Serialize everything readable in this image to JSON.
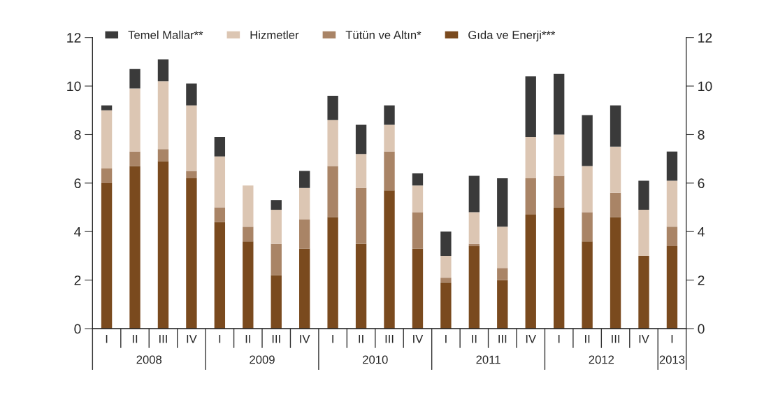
{
  "chart_data": {
    "type": "bar",
    "stacked": true,
    "categories": [
      "I",
      "II",
      "III",
      "IV",
      "I",
      "II",
      "III",
      "IV",
      "I",
      "II",
      "III",
      "IV",
      "I",
      "II",
      "III",
      "IV",
      "I",
      "II",
      "III",
      "IV",
      "I"
    ],
    "series": [
      {
        "name": "Gıda ve Enerji***",
        "color": "#7a4a1e",
        "values": [
          6.0,
          6.7,
          6.9,
          6.2,
          4.4,
          3.6,
          2.2,
          3.3,
          4.6,
          3.5,
          5.7,
          3.3,
          1.9,
          3.4,
          2.0,
          4.7,
          5.0,
          3.6,
          4.6,
          3.0,
          3.4
        ]
      },
      {
        "name": "Tütün ve Altın*",
        "color": "#a98466",
        "values": [
          0.6,
          0.6,
          0.5,
          0.3,
          0.6,
          0.6,
          1.3,
          1.2,
          2.1,
          2.3,
          1.6,
          1.5,
          0.2,
          0.1,
          0.5,
          1.5,
          1.3,
          1.2,
          1.0,
          0.0,
          0.8
        ]
      },
      {
        "name": "Hizmetler",
        "color": "#dcc6b3",
        "values": [
          2.4,
          2.6,
          2.8,
          2.7,
          2.1,
          1.7,
          1.4,
          1.3,
          1.9,
          1.4,
          1.1,
          1.1,
          0.9,
          1.3,
          1.7,
          1.7,
          1.7,
          1.9,
          1.9,
          1.9,
          1.9
        ]
      },
      {
        "name": "Temel Mallar**",
        "color": "#3a3a3a",
        "values": [
          0.2,
          0.8,
          0.9,
          0.9,
          0.8,
          0.0,
          0.4,
          0.7,
          1.0,
          1.2,
          0.8,
          0.5,
          1.0,
          1.5,
          2.0,
          2.5,
          2.5,
          2.1,
          1.7,
          1.2,
          1.2
        ]
      }
    ],
    "ylim": [
      0,
      12
    ],
    "yticks": [
      0,
      2,
      4,
      6,
      8,
      10,
      12
    ],
    "y2lim": [
      0,
      12
    ],
    "y2ticks": [
      0,
      2,
      4,
      6,
      8,
      10,
      12
    ],
    "annotations": [
      "2008",
      "2009",
      "2010",
      "2011",
      "2012",
      "2013"
    ],
    "legend": "top",
    "grid": false
  }
}
